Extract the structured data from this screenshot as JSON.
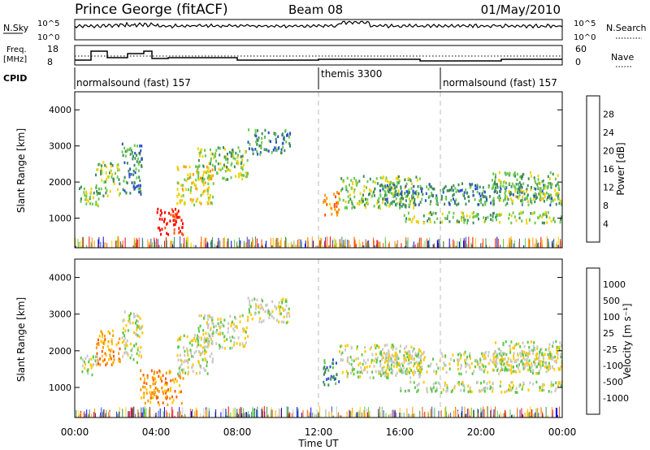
{
  "header": {
    "station": "Prince George (fitACF)",
    "beam": "Beam 08",
    "date": "01/May/2010"
  },
  "noise_panel": {
    "left_label": "N.Sky",
    "left_ticks": [
      "10^5",
      "10^0"
    ],
    "right_label": "N.Search",
    "right_ticks": [
      "10^5",
      "10^0"
    ]
  },
  "freq_panel": {
    "left_label_1": "Freq.",
    "left_label_2": "[MHz]",
    "left_ticks": [
      "18",
      "8"
    ],
    "right_label": "Nave",
    "right_ticks": [
      "60",
      "0"
    ]
  },
  "cpid": {
    "label": "CPID",
    "segments": [
      {
        "name": "normalsound (fast) 157",
        "start_hour": 0
      },
      {
        "name": "themis 3300",
        "start_hour": 12
      },
      {
        "name": "normalsound (fast) 157",
        "start_hour": 18
      }
    ]
  },
  "colors": {
    "power": [
      "#0000ff",
      "#2850c8",
      "#3c8c5a",
      "#6cc850",
      "#f0d200",
      "#ff9600",
      "#ff5000",
      "#ff0000"
    ],
    "velocity": [
      "#ff0000",
      "#ff5a00",
      "#ff9600",
      "#ffc800",
      "#c8c8c8",
      "#5ac846",
      "#3c8c5a",
      "#2850c8",
      "#0000ff"
    ]
  },
  "chart_data": [
    {
      "type": "heatmap",
      "name": "power",
      "ylabel": "Slant Range [km]",
      "ylim": [
        180,
        4500
      ],
      "yticks": [
        "1000",
        "2000",
        "3000",
        "4000"
      ],
      "xlim": [
        0,
        24
      ],
      "colorbar_label": "Power [dB]",
      "colorbar_ticks": [
        "4",
        "8",
        "12",
        "16",
        "20",
        "24",
        "28"
      ],
      "blobs": [
        {
          "t0": 0.2,
          "t1": 1.2,
          "r0": 1350,
          "r1": 1900,
          "level": 3
        },
        {
          "t0": 1.0,
          "t1": 2.2,
          "r0": 1650,
          "r1": 2600,
          "level": 3
        },
        {
          "t0": 2.3,
          "t1": 3.3,
          "r0": 1700,
          "r1": 3100,
          "level": 2
        },
        {
          "t0": 4.0,
          "t1": 5.3,
          "r0": 550,
          "r1": 1300,
          "level": 7
        },
        {
          "t0": 5.0,
          "t1": 6.8,
          "r0": 1400,
          "r1": 2500,
          "level": 4
        },
        {
          "t0": 6.0,
          "t1": 8.5,
          "r0": 2100,
          "r1": 3000,
          "level": 3
        },
        {
          "t0": 8.5,
          "t1": 10.6,
          "r0": 2800,
          "r1": 3500,
          "level": 2
        },
        {
          "t0": 12.2,
          "t1": 13.0,
          "r0": 1100,
          "r1": 1800,
          "level": 5
        },
        {
          "t0": 13.0,
          "t1": 17.0,
          "r0": 1300,
          "r1": 2200,
          "level": 3
        },
        {
          "t0": 15.0,
          "t1": 24.0,
          "r0": 1400,
          "r1": 2000,
          "level": 2
        },
        {
          "t0": 16.0,
          "t1": 24.0,
          "r0": 900,
          "r1": 1200,
          "level": 3
        },
        {
          "t0": 20.5,
          "t1": 24.0,
          "r0": 1500,
          "r1": 2300,
          "level": 3
        }
      ]
    },
    {
      "type": "heatmap",
      "name": "velocity",
      "ylabel": "Slant Range [km]",
      "ylim": [
        180,
        4500
      ],
      "yticks": [
        "1000",
        "2000",
        "3000",
        "4000"
      ],
      "xlim": [
        0,
        24
      ],
      "colorbar_label": "Velocity [m s⁻¹]",
      "colorbar_ticks": [
        "1000",
        "500",
        "100",
        "25",
        "-25",
        "-100",
        "-500",
        "-1000"
      ],
      "blobs": [
        {
          "t0": 0.2,
          "t1": 1.2,
          "r0": 1350,
          "r1": 1900,
          "level": 4
        },
        {
          "t0": 1.0,
          "t1": 2.2,
          "r0": 1650,
          "r1": 2600,
          "level": 2
        },
        {
          "t0": 2.3,
          "t1": 3.3,
          "r0": 1700,
          "r1": 3100,
          "level": 4
        },
        {
          "t0": 3.2,
          "t1": 5.3,
          "r0": 550,
          "r1": 1500,
          "level": 2
        },
        {
          "t0": 5.0,
          "t1": 6.8,
          "r0": 1400,
          "r1": 2500,
          "level": 4
        },
        {
          "t0": 6.0,
          "t1": 8.5,
          "r0": 2100,
          "r1": 3000,
          "level": 4
        },
        {
          "t0": 8.5,
          "t1": 10.6,
          "r0": 2800,
          "r1": 3500,
          "level": 4
        },
        {
          "t0": 12.2,
          "t1": 13.0,
          "r0": 1100,
          "r1": 1800,
          "level": 6
        },
        {
          "t0": 13.0,
          "t1": 17.0,
          "r0": 1300,
          "r1": 2200,
          "level": 4
        },
        {
          "t0": 15.0,
          "t1": 24.0,
          "r0": 1400,
          "r1": 2000,
          "level": 4
        },
        {
          "t0": 16.0,
          "t1": 24.0,
          "r0": 900,
          "r1": 1200,
          "level": 4
        },
        {
          "t0": 20.5,
          "t1": 24.0,
          "r0": 1500,
          "r1": 2300,
          "level": 4
        }
      ]
    }
  ],
  "x_axis": {
    "ticks": [
      "00:00",
      "04:00",
      "08:00",
      "12:00",
      "16:00",
      "20:00",
      "00:00"
    ],
    "label": "Time UT"
  }
}
